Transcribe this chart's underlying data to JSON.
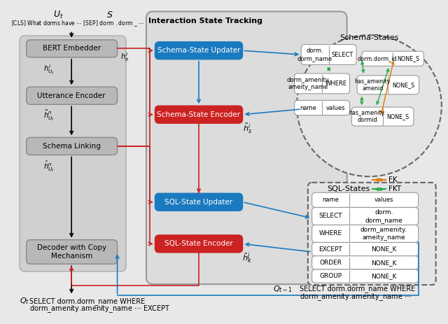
{
  "fig_width": 6.4,
  "fig_height": 4.63,
  "bg_color": "#e8e8e8",
  "blue_color": "#1a7abf",
  "red_color": "#cc2222",
  "green_color": "#22aa44",
  "orange_color": "#dd7700",
  "title": "Interaction State Tracking",
  "schema_states_title": "Schema-States",
  "sql_states_title": "SQL-States",
  "bert_label": "BERT Embedder",
  "utterance_encoder_label": "Utterance Encoder",
  "schema_linking_label": "Schema Linking",
  "decoder_label": "Decoder with Copy\nMechanism",
  "schema_state_updater_label": "Schema-State Updater",
  "schema_state_encoder_label": "Schema-State Encoder",
  "sql_state_updater_label": "SQL-State Updater",
  "sql_state_encoder_label": "SQL-State Encoder",
  "fk_label": "FK",
  "fkt_label": "FKT"
}
